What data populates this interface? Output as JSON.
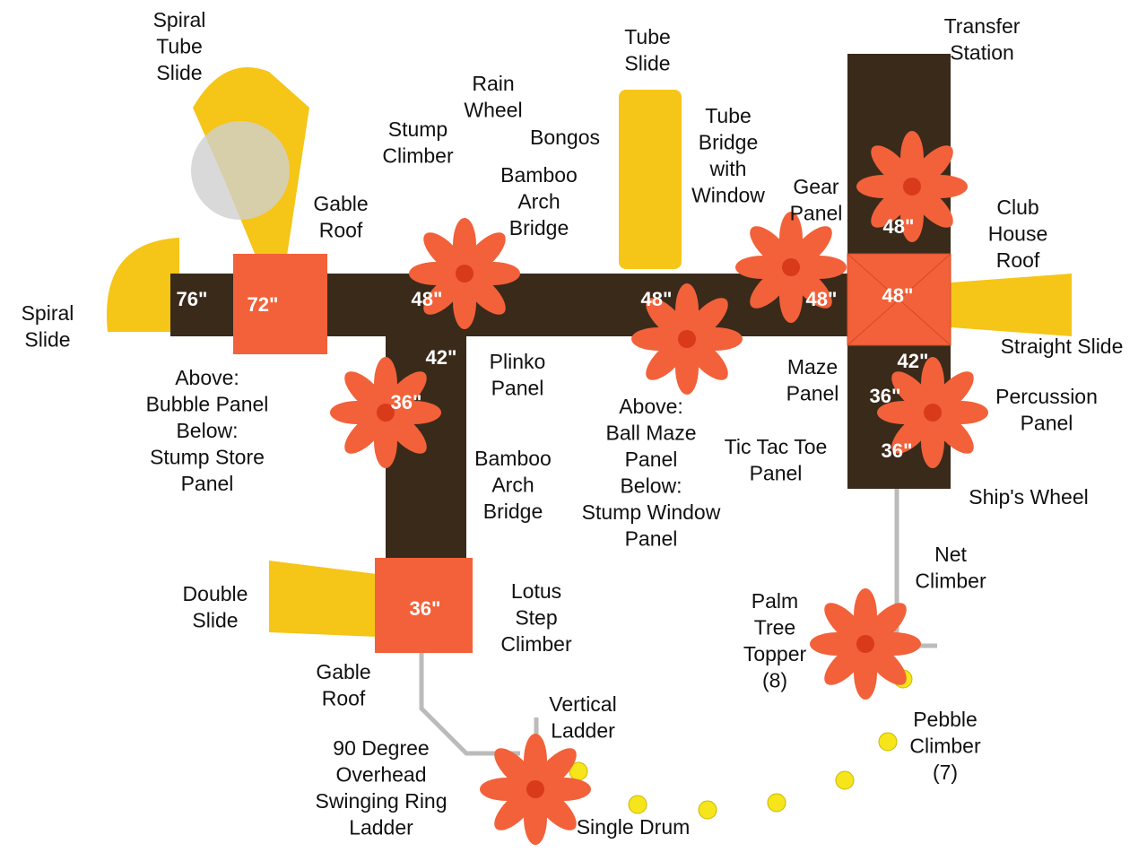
{
  "labels": [
    {
      "lines": [
        "Spiral",
        "Tube",
        "Slide"
      ]
    },
    {
      "lines": [
        "Tube",
        "Slide"
      ]
    },
    {
      "lines": [
        "Rain",
        "Wheel"
      ]
    },
    {
      "lines": [
        "Transfer",
        "Station"
      ]
    },
    {
      "lines": [
        "Stump",
        "Climber"
      ]
    },
    {
      "lines": [
        "Bongos"
      ]
    },
    {
      "lines": [
        "Tube",
        "Bridge",
        "with",
        "Window"
      ]
    },
    {
      "lines": [
        "Bamboo",
        "Arch",
        "Bridge"
      ]
    },
    {
      "lines": [
        "Gable",
        "Roof"
      ]
    },
    {
      "lines": [
        "Gear",
        "Panel"
      ]
    },
    {
      "lines": [
        "Club",
        "House",
        "Roof"
      ]
    },
    {
      "lines": [
        "Spiral",
        "Slide"
      ]
    },
    {
      "lines": [
        "Straight Slide"
      ]
    },
    {
      "lines": [
        "Plinko",
        "Panel"
      ]
    },
    {
      "lines": [
        "Maze",
        "Panel"
      ]
    },
    {
      "lines": [
        "Above:",
        "Bubble Panel",
        "Below:",
        "Stump Store",
        "Panel"
      ]
    },
    {
      "lines": [
        "Above:",
        "Ball Maze",
        "Panel",
        "Below:",
        "Stump Window",
        "Panel"
      ]
    },
    {
      "lines": [
        "Percussion",
        "Panel"
      ]
    },
    {
      "lines": [
        "Tic Tac Toe",
        "Panel"
      ]
    },
    {
      "lines": [
        "Bamboo",
        "Arch",
        "Bridge"
      ]
    },
    {
      "lines": [
        "Ship's Wheel"
      ]
    },
    {
      "lines": [
        "Net",
        "Climber"
      ]
    },
    {
      "lines": [
        "Double",
        "Slide"
      ]
    },
    {
      "lines": [
        "Lotus",
        "Step",
        "Climber"
      ]
    },
    {
      "lines": [
        "Palm",
        "Tree",
        "Topper",
        "(8)"
      ]
    },
    {
      "lines": [
        "Gable",
        "Roof"
      ]
    },
    {
      "lines": [
        "Vertical",
        "Ladder"
      ]
    },
    {
      "lines": [
        "Pebble",
        "Climber",
        "(7)"
      ]
    },
    {
      "lines": [
        "90 Degree",
        "Overhead",
        "Swinging Ring",
        "Ladder"
      ]
    },
    {
      "lines": [
        "Single Drum"
      ]
    }
  ],
  "heights": [
    "76\"",
    "72\"",
    "48\"",
    "42\"",
    "36\"",
    "48\"",
    "48\"",
    "48\"",
    "48\"",
    "42\"",
    "36\"",
    "36\"",
    "36\""
  ]
}
